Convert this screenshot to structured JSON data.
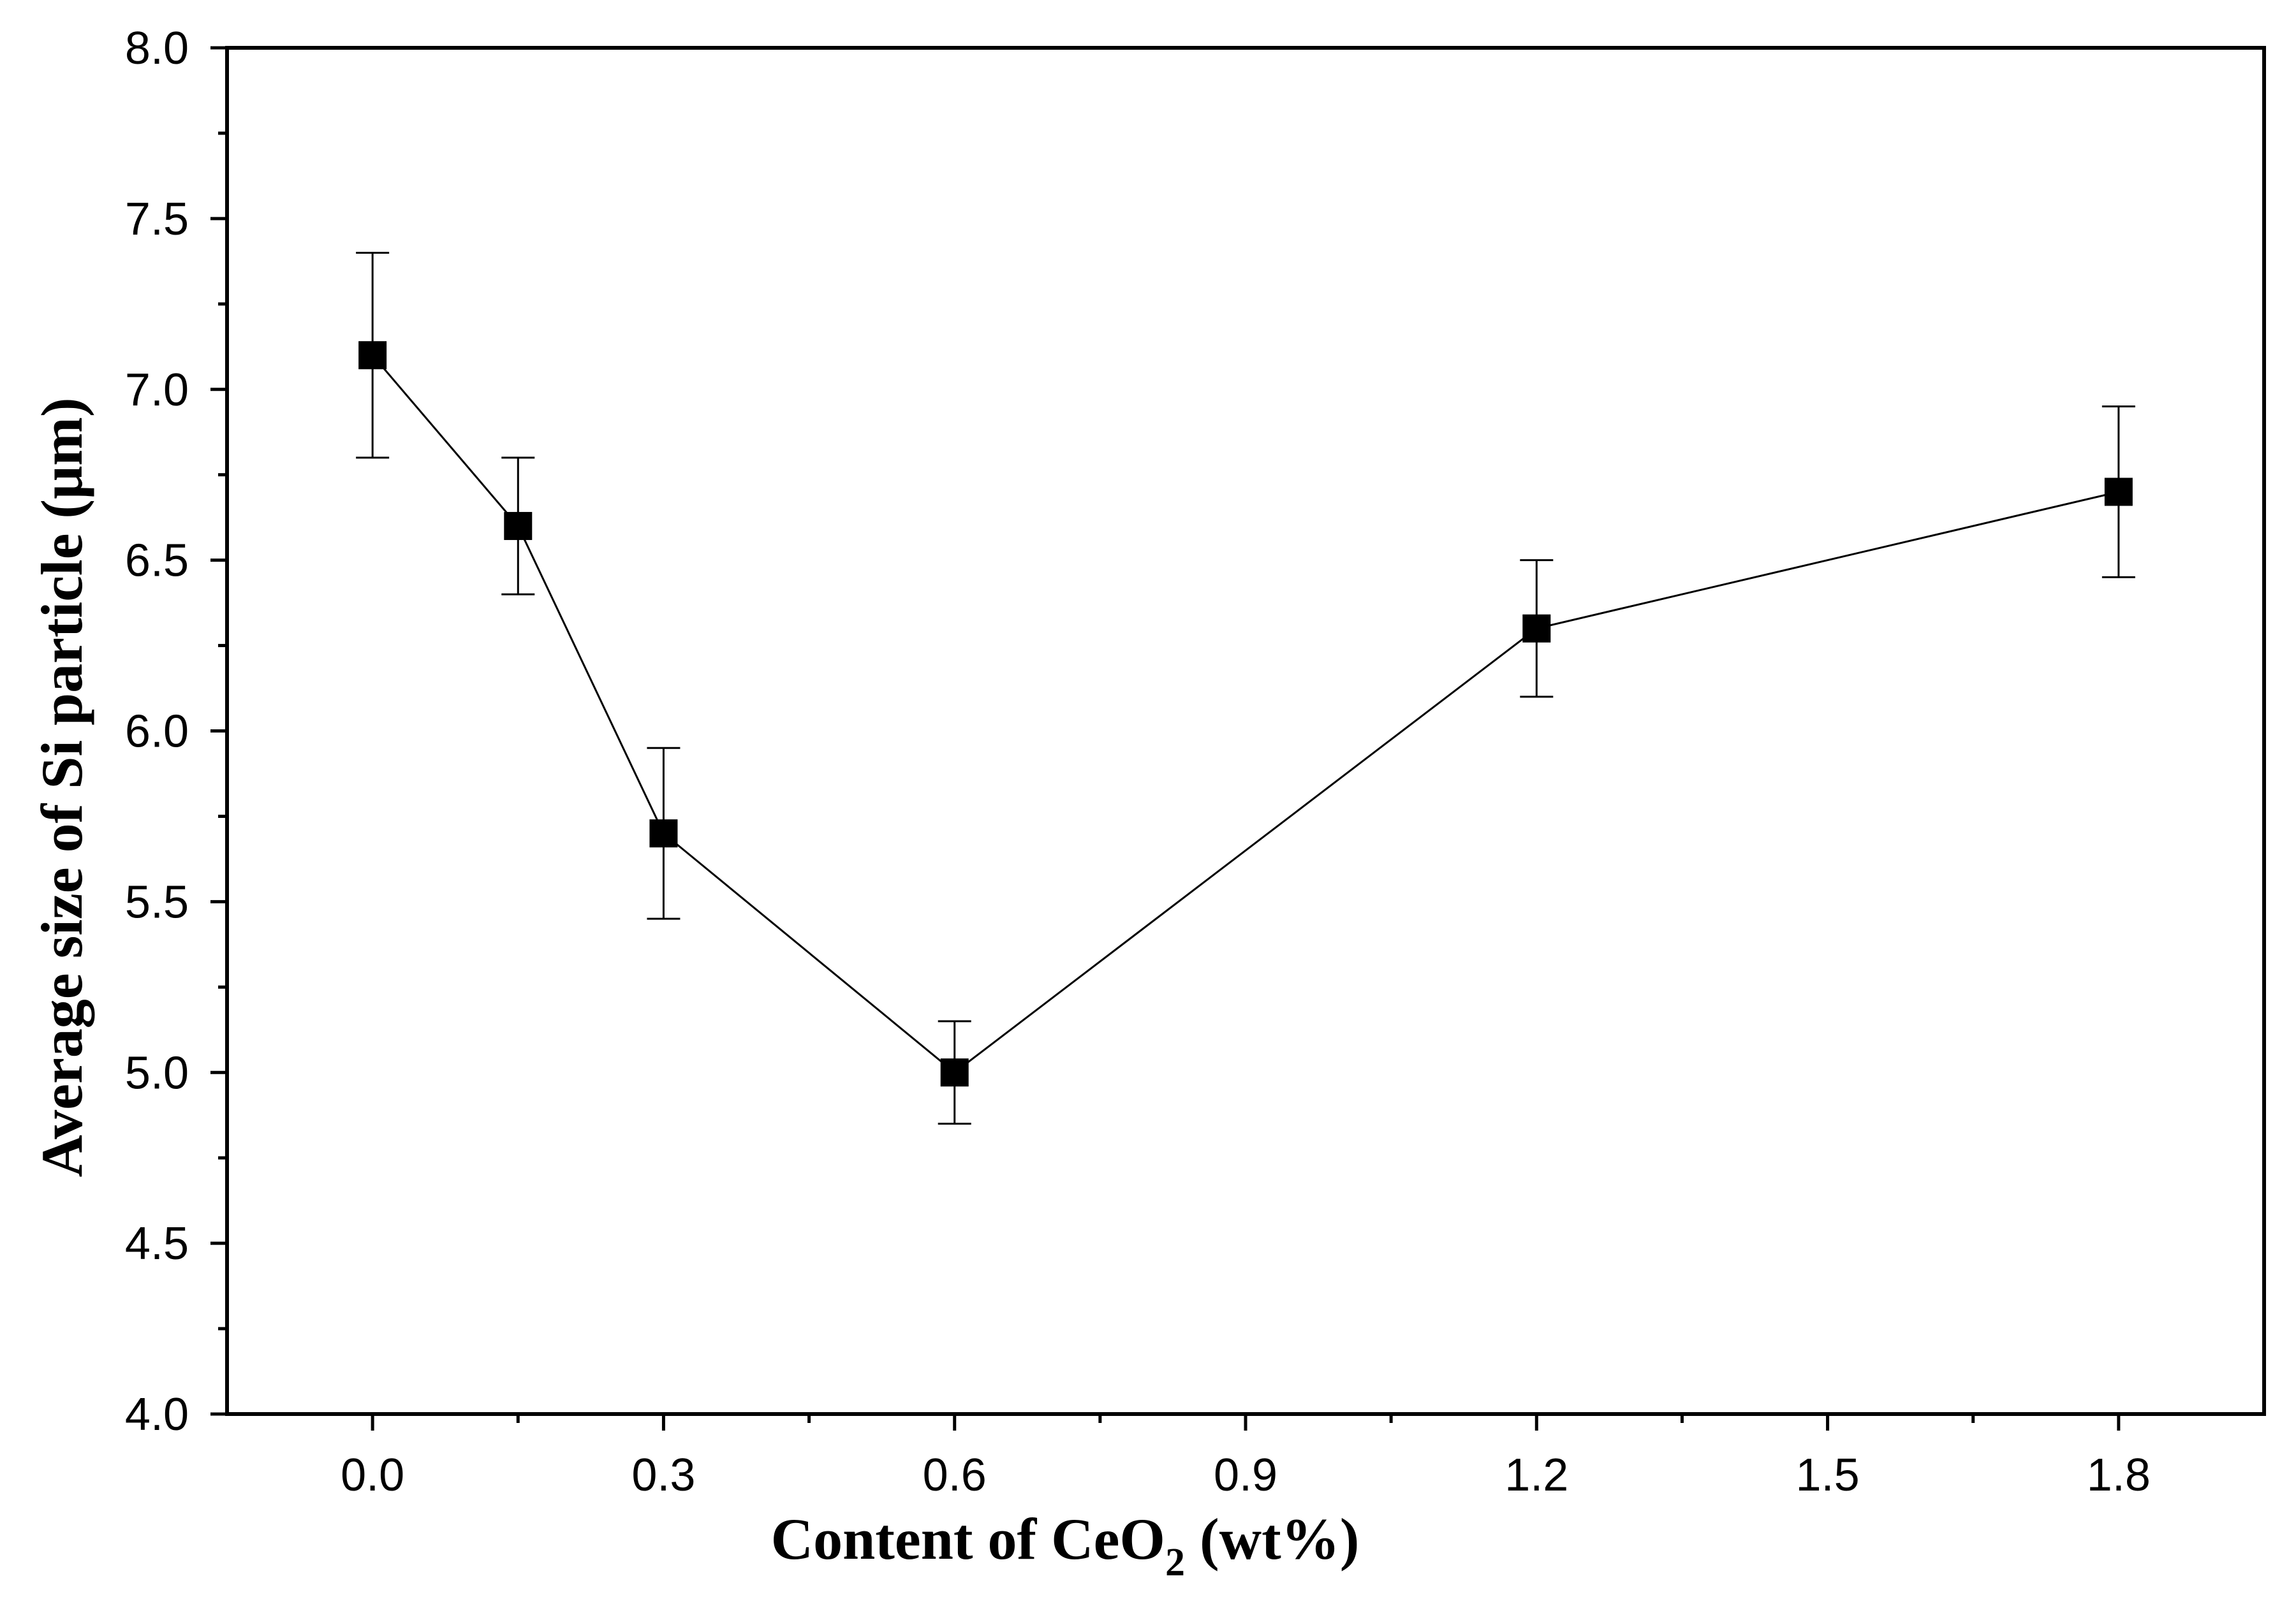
{
  "chart_data": {
    "type": "line",
    "title": "",
    "xlabel": {
      "prefix": "Content of CeO",
      "subscript": "2",
      "suffix": " (wt%)"
    },
    "ylabel": "Average size of Si particle (μm)",
    "xlim": [
      -0.15,
      1.95
    ],
    "ylim": [
      4.0,
      8.0
    ],
    "x_ticks": [
      0.0,
      0.3,
      0.6,
      0.9,
      1.2,
      1.5,
      1.8
    ],
    "x_tick_labels": [
      "0.0",
      "0.3",
      "0.6",
      "0.9",
      "1.2",
      "1.5",
      "1.8"
    ],
    "y_ticks": [
      4.0,
      4.5,
      5.0,
      5.5,
      6.0,
      6.5,
      7.0,
      7.5,
      8.0
    ],
    "y_tick_labels": [
      "4.0",
      "4.5",
      "5.0",
      "5.5",
      "6.0",
      "6.5",
      "7.0",
      "7.5",
      "8.0"
    ],
    "grid": false,
    "series": [
      {
        "name": "Average size",
        "marker": "square",
        "color": "#000000",
        "x": [
          0.0,
          0.15,
          0.3,
          0.6,
          1.2,
          1.8
        ],
        "y": [
          7.1,
          6.6,
          5.7,
          5.0,
          6.3,
          6.7
        ],
        "error": [
          0.3,
          0.2,
          0.25,
          0.15,
          0.2,
          0.25
        ]
      }
    ]
  }
}
